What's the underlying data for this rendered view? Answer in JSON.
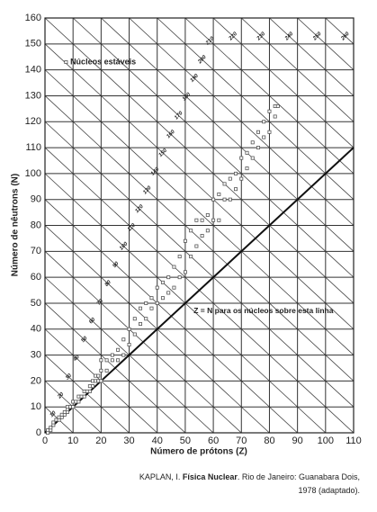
{
  "chart_data": {
    "type": "scatter",
    "x_label": "Número de prótons (Z)",
    "y_label": "Número de nêutrons (N)",
    "series": [
      {
        "name": "Núcleos estáveis",
        "color": "#555555",
        "x": [
          1,
          1,
          2,
          2,
          3,
          3,
          4,
          5,
          5,
          6,
          6,
          7,
          7,
          8,
          8,
          8,
          9,
          10,
          10,
          11,
          12,
          12,
          13,
          14,
          14,
          15,
          16,
          16,
          17,
          17,
          18,
          18,
          19,
          19,
          20,
          20,
          20,
          22,
          22,
          24,
          24,
          26,
          26,
          28,
          28,
          30,
          30,
          32,
          32,
          34,
          34,
          36,
          36,
          38,
          38,
          40,
          40,
          42,
          42,
          44,
          44,
          46,
          46,
          48,
          48,
          50,
          50,
          52,
          52,
          54,
          54,
          56,
          56,
          58,
          58,
          60,
          60,
          62,
          62,
          64,
          64,
          66,
          66,
          68,
          68,
          70,
          70,
          72,
          72,
          74,
          74,
          76,
          76,
          78,
          78,
          80,
          80,
          82,
          82,
          83
        ],
        "values": [
          0,
          1,
          1,
          2,
          3,
          4,
          5,
          5,
          6,
          6,
          7,
          7,
          8,
          8,
          9,
          10,
          10,
          10,
          12,
          12,
          12,
          14,
          14,
          14,
          16,
          16,
          16,
          18,
          18,
          20,
          20,
          22,
          20,
          22,
          20,
          24,
          28,
          24,
          28,
          28,
          30,
          28,
          32,
          30,
          36,
          34,
          40,
          38,
          44,
          42,
          48,
          44,
          50,
          48,
          52,
          50,
          56,
          52,
          58,
          54,
          60,
          56,
          64,
          60,
          68,
          62,
          74,
          68,
          78,
          72,
          82,
          76,
          82,
          78,
          84,
          82,
          90,
          82,
          92,
          90,
          96,
          90,
          98,
          94,
          100,
          98,
          106,
          102,
          108,
          106,
          112,
          110,
          116,
          114,
          120,
          116,
          124,
          122,
          126,
          126
        ]
      }
    ],
    "isobars": [
      10,
      20,
      30,
      40,
      50,
      60,
      70,
      80,
      90,
      100,
      110,
      120,
      130,
      140,
      150,
      160,
      170,
      180,
      190,
      200,
      210,
      220,
      230,
      240,
      250,
      260
    ],
    "annotation": "Z = N para os núcleos sobre esta linha",
    "identity_line": true,
    "grid": true,
    "xlim": [
      0,
      110
    ],
    "xticks": [
      0,
      10,
      20,
      30,
      40,
      50,
      60,
      70,
      80,
      90,
      100,
      110
    ],
    "ylim": [
      0,
      160
    ],
    "yticks": [
      0,
      10,
      20,
      30,
      40,
      50,
      60,
      70,
      80,
      90,
      100,
      110,
      120,
      130,
      140,
      150,
      160
    ]
  },
  "source": {
    "author": "KAPLAN, I.",
    "title": "Física Nuclear",
    "rest": ". Rio de Janeiro: Guanabara Dois, 1978 (adaptado)."
  }
}
